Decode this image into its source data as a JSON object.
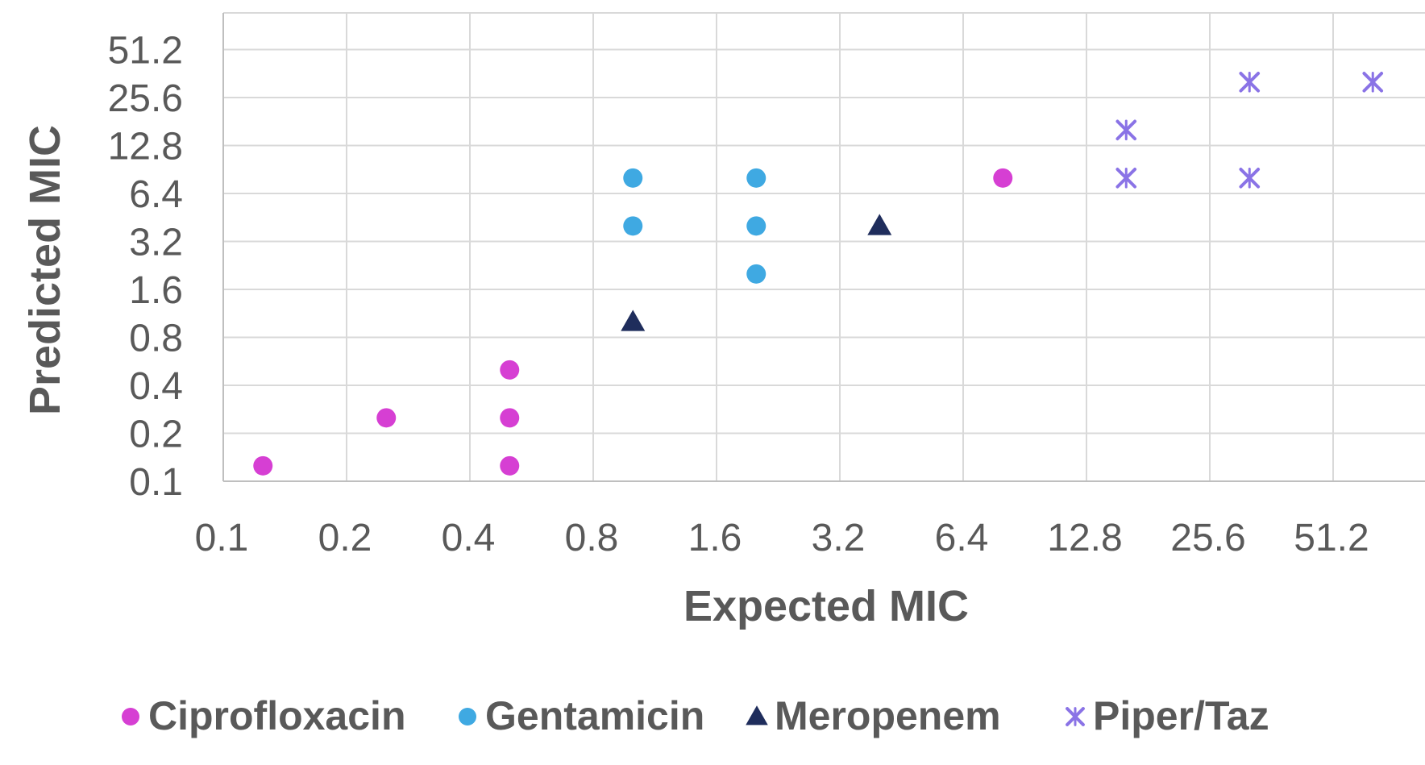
{
  "chart_data": {
    "type": "scatter",
    "title": "",
    "xlabel": "Expected MIC",
    "ylabel": "Predicted MIC",
    "x_scale": "log2",
    "y_scale": "log2",
    "xlim": [
      0.1,
      102.4
    ],
    "ylim": [
      0.1,
      51.2
    ],
    "x_ticks": [
      "0.1",
      "0.2",
      "0.4",
      "0.8",
      "1.6",
      "3.2",
      "6.4",
      "12.8",
      "25.6",
      "51.2"
    ],
    "y_ticks": [
      "0.1",
      "0.2",
      "0.4",
      "0.8",
      "1.6",
      "3.2",
      "6.4",
      "12.8",
      "25.6",
      "51.2"
    ],
    "grid": true,
    "legend_position": "bottom",
    "series": [
      {
        "name": "Ciprofloxacin",
        "marker": "circle",
        "color": "#d63fd3",
        "points": [
          {
            "x": 0.125,
            "y": 0.125
          },
          {
            "x": 0.25,
            "y": 0.25
          },
          {
            "x": 0.5,
            "y": 0.5
          },
          {
            "x": 0.5,
            "y": 0.25
          },
          {
            "x": 0.5,
            "y": 0.125
          },
          {
            "x": 8,
            "y": 8
          }
        ]
      },
      {
        "name": "Gentamicin",
        "marker": "circle",
        "color": "#3fa9e2",
        "points": [
          {
            "x": 1,
            "y": 8
          },
          {
            "x": 1,
            "y": 4
          },
          {
            "x": 2,
            "y": 8
          },
          {
            "x": 2,
            "y": 4
          },
          {
            "x": 2,
            "y": 2
          }
        ]
      },
      {
        "name": "Meropenem",
        "marker": "triangle",
        "color": "#1f2d5c",
        "points": [
          {
            "x": 1,
            "y": 1
          },
          {
            "x": 4,
            "y": 4
          }
        ]
      },
      {
        "name": "Piper/Taz",
        "marker": "x",
        "color": "#8a73e6",
        "points": [
          {
            "x": 16,
            "y": 16
          },
          {
            "x": 16,
            "y": 8
          },
          {
            "x": 32,
            "y": 32
          },
          {
            "x": 32,
            "y": 8
          },
          {
            "x": 64,
            "y": 32
          }
        ]
      }
    ]
  }
}
